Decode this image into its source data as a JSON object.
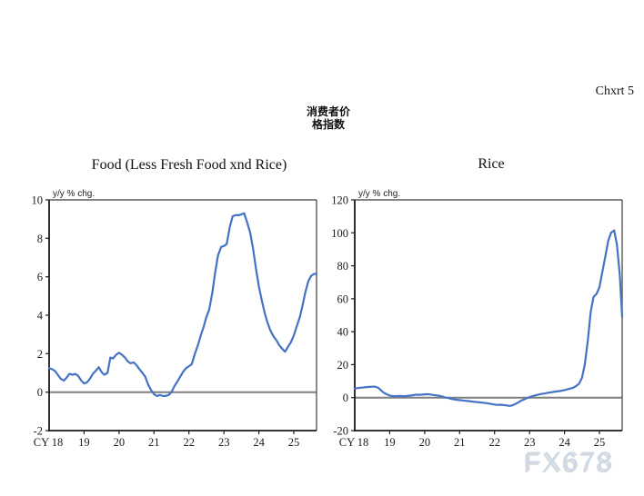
{
  "header": {
    "chart_number": "Chxrt 5",
    "title_line1": "消费者价",
    "title_line2": "格指数"
  },
  "watermark": {
    "text": "FX678"
  },
  "colors": {
    "line": "#4472c4",
    "zero_line": "#7f7f7f",
    "axis": "#1a1a1a",
    "frame": "#595959",
    "tick_label": "#1a1a1a",
    "unit_label": "#222222",
    "watermark_text": "#cbd9e8",
    "watermark_shadow": "#d8d8d8"
  },
  "chart_data": [
    {
      "type": "line",
      "title": "Food (Less Fresh Food xnd Rice)",
      "ylabel": "y/y % chg.",
      "x_axis_prefix": "CY",
      "x_ticks": [
        18,
        19,
        20,
        21,
        22,
        23,
        24,
        25
      ],
      "x_range": [
        18,
        25.65
      ],
      "ylim": [
        -2,
        10
      ],
      "y_ticks": [
        -2,
        0,
        2,
        4,
        6,
        8,
        10
      ],
      "zero_line": 0,
      "grid": false,
      "legend": "none",
      "series": [
        {
          "name": "Food (Less Fresh Food xnd Rice) y/y % chg.",
          "points": [
            [
              18.0,
              1.25
            ],
            [
              18.08,
              1.2
            ],
            [
              18.17,
              1.1
            ],
            [
              18.25,
              0.9
            ],
            [
              18.33,
              0.7
            ],
            [
              18.42,
              0.6
            ],
            [
              18.5,
              0.75
            ],
            [
              18.58,
              0.95
            ],
            [
              18.67,
              0.9
            ],
            [
              18.75,
              0.95
            ],
            [
              18.83,
              0.85
            ],
            [
              18.92,
              0.6
            ],
            [
              19.0,
              0.45
            ],
            [
              19.08,
              0.5
            ],
            [
              19.17,
              0.7
            ],
            [
              19.25,
              0.95
            ],
            [
              19.33,
              1.1
            ],
            [
              19.42,
              1.3
            ],
            [
              19.5,
              1.05
            ],
            [
              19.58,
              0.9
            ],
            [
              19.67,
              1.0
            ],
            [
              19.75,
              1.8
            ],
            [
              19.83,
              1.75
            ],
            [
              19.92,
              1.95
            ],
            [
              20.0,
              2.05
            ],
            [
              20.08,
              1.95
            ],
            [
              20.17,
              1.8
            ],
            [
              20.25,
              1.6
            ],
            [
              20.33,
              1.5
            ],
            [
              20.42,
              1.55
            ],
            [
              20.5,
              1.4
            ],
            [
              20.58,
              1.2
            ],
            [
              20.67,
              1.0
            ],
            [
              20.75,
              0.8
            ],
            [
              20.83,
              0.4
            ],
            [
              20.92,
              0.1
            ],
            [
              21.0,
              -0.1
            ],
            [
              21.08,
              -0.2
            ],
            [
              21.17,
              -0.15
            ],
            [
              21.25,
              -0.2
            ],
            [
              21.33,
              -0.2
            ],
            [
              21.42,
              -0.15
            ],
            [
              21.5,
              0.0
            ],
            [
              21.58,
              0.3
            ],
            [
              21.67,
              0.55
            ],
            [
              21.75,
              0.8
            ],
            [
              21.83,
              1.05
            ],
            [
              21.92,
              1.25
            ],
            [
              22.0,
              1.35
            ],
            [
              22.08,
              1.45
            ],
            [
              22.17,
              2.0
            ],
            [
              22.25,
              2.4
            ],
            [
              22.33,
              2.9
            ],
            [
              22.42,
              3.4
            ],
            [
              22.5,
              3.9
            ],
            [
              22.58,
              4.3
            ],
            [
              22.67,
              5.2
            ],
            [
              22.75,
              6.2
            ],
            [
              22.83,
              7.1
            ],
            [
              22.92,
              7.55
            ],
            [
              23.0,
              7.6
            ],
            [
              23.08,
              7.7
            ],
            [
              23.17,
              8.6
            ],
            [
              23.25,
              9.15
            ],
            [
              23.33,
              9.2
            ],
            [
              23.42,
              9.2
            ],
            [
              23.5,
              9.25
            ],
            [
              23.58,
              9.3
            ],
            [
              23.67,
              8.8
            ],
            [
              23.75,
              8.3
            ],
            [
              23.83,
              7.5
            ],
            [
              23.92,
              6.4
            ],
            [
              24.0,
              5.5
            ],
            [
              24.08,
              4.8
            ],
            [
              24.17,
              4.1
            ],
            [
              24.25,
              3.6
            ],
            [
              24.33,
              3.2
            ],
            [
              24.42,
              2.9
            ],
            [
              24.5,
              2.7
            ],
            [
              24.58,
              2.45
            ],
            [
              24.67,
              2.25
            ],
            [
              24.75,
              2.1
            ],
            [
              24.83,
              2.35
            ],
            [
              24.92,
              2.6
            ],
            [
              25.0,
              2.95
            ],
            [
              25.08,
              3.4
            ],
            [
              25.17,
              3.9
            ],
            [
              25.25,
              4.5
            ],
            [
              25.33,
              5.2
            ],
            [
              25.42,
              5.8
            ],
            [
              25.5,
              6.05
            ],
            [
              25.58,
              6.15
            ],
            [
              25.65,
              6.15
            ]
          ]
        }
      ]
    },
    {
      "type": "line",
      "title": "Rice",
      "ylabel": "y/y % chg.",
      "x_axis_prefix": "CY",
      "x_ticks": [
        18,
        19,
        20,
        21,
        22,
        23,
        24,
        25
      ],
      "x_range": [
        18,
        25.65
      ],
      "ylim": [
        -20,
        120
      ],
      "y_ticks": [
        -20,
        0,
        20,
        40,
        60,
        80,
        100,
        120
      ],
      "zero_line": 0,
      "grid": false,
      "legend": "none",
      "series": [
        {
          "name": "Rice y/y % chg.",
          "points": [
            [
              18.0,
              5.5
            ],
            [
              18.08,
              5.8
            ],
            [
              18.17,
              6.0
            ],
            [
              18.25,
              6.2
            ],
            [
              18.33,
              6.4
            ],
            [
              18.42,
              6.5
            ],
            [
              18.5,
              6.6
            ],
            [
              18.58,
              6.7
            ],
            [
              18.67,
              6.0
            ],
            [
              18.75,
              4.5
            ],
            [
              18.83,
              3.0
            ],
            [
              18.92,
              2.0
            ],
            [
              19.0,
              1.3
            ],
            [
              19.08,
              1.0
            ],
            [
              19.17,
              0.9
            ],
            [
              19.25,
              1.0
            ],
            [
              19.33,
              1.0
            ],
            [
              19.42,
              0.9
            ],
            [
              19.5,
              1.0
            ],
            [
              19.58,
              1.2
            ],
            [
              19.67,
              1.5
            ],
            [
              19.75,
              1.8
            ],
            [
              19.83,
              1.7
            ],
            [
              19.92,
              1.8
            ],
            [
              20.0,
              2.0
            ],
            [
              20.08,
              2.1
            ],
            [
              20.17,
              1.9
            ],
            [
              20.25,
              1.6
            ],
            [
              20.33,
              1.4
            ],
            [
              20.42,
              1.1
            ],
            [
              20.5,
              0.6
            ],
            [
              20.58,
              0.2
            ],
            [
              20.67,
              -0.2
            ],
            [
              20.75,
              -0.7
            ],
            [
              20.83,
              -1.0
            ],
            [
              20.92,
              -1.3
            ],
            [
              21.0,
              -1.5
            ],
            [
              21.08,
              -1.7
            ],
            [
              21.17,
              -1.9
            ],
            [
              21.25,
              -2.1
            ],
            [
              21.33,
              -2.3
            ],
            [
              21.42,
              -2.5
            ],
            [
              21.5,
              -2.7
            ],
            [
              21.58,
              -2.9
            ],
            [
              21.67,
              -3.1
            ],
            [
              21.75,
              -3.3
            ],
            [
              21.83,
              -3.6
            ],
            [
              21.92,
              -3.9
            ],
            [
              22.0,
              -4.2
            ],
            [
              22.08,
              -4.4
            ],
            [
              22.17,
              -4.3
            ],
            [
              22.25,
              -4.5
            ],
            [
              22.33,
              -4.7
            ],
            [
              22.42,
              -5.0
            ],
            [
              22.5,
              -4.8
            ],
            [
              22.58,
              -4.0
            ],
            [
              22.67,
              -3.0
            ],
            [
              22.75,
              -2.0
            ],
            [
              22.83,
              -1.2
            ],
            [
              22.92,
              -0.4
            ],
            [
              23.0,
              0.3
            ],
            [
              23.08,
              0.9
            ],
            [
              23.17,
              1.4
            ],
            [
              23.25,
              1.8
            ],
            [
              23.33,
              2.2
            ],
            [
              23.42,
              2.5
            ],
            [
              23.5,
              2.8
            ],
            [
              23.58,
              3.1
            ],
            [
              23.67,
              3.4
            ],
            [
              23.75,
              3.7
            ],
            [
              23.83,
              3.9
            ],
            [
              23.92,
              4.2
            ],
            [
              24.0,
              4.6
            ],
            [
              24.08,
              5.0
            ],
            [
              24.17,
              5.5
            ],
            [
              24.25,
              6.0
            ],
            [
              24.33,
              7.0
            ],
            [
              24.42,
              8.5
            ],
            [
              24.5,
              12
            ],
            [
              24.58,
              20
            ],
            [
              24.67,
              35
            ],
            [
              24.75,
              52
            ],
            [
              24.83,
              61
            ],
            [
              24.92,
              63
            ],
            [
              25.0,
              67
            ],
            [
              25.08,
              76
            ],
            [
              25.17,
              86
            ],
            [
              25.25,
              95
            ],
            [
              25.33,
              100
            ],
            [
              25.42,
              101.5
            ],
            [
              25.5,
              93
            ],
            [
              25.58,
              75
            ],
            [
              25.65,
              49
            ]
          ]
        }
      ]
    }
  ]
}
